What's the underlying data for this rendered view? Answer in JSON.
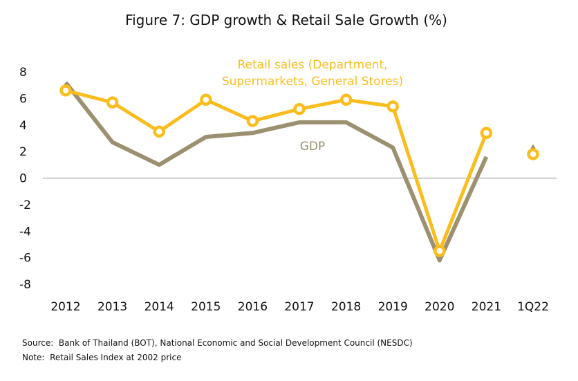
{
  "chart_data": {
    "type": "line",
    "title": "Figure 7: GDP growth & Retail Sale Growth (%)",
    "xlabel": "",
    "ylabel": "",
    "categories": [
      "2012",
      "2013",
      "2014",
      "2015",
      "2016",
      "2017",
      "2018",
      "2019",
      "2020",
      "2021",
      "1Q22"
    ],
    "ylim": [
      -8,
      8
    ],
    "yticks": [
      8,
      6,
      4,
      2,
      0,
      -2,
      -4,
      -6,
      -8
    ],
    "grid": false,
    "zero_line": true,
    "legend": "inline-labels",
    "series": [
      {
        "name": "GDP",
        "color": "#9c9070",
        "markers": false,
        "values": [
          7.2,
          2.7,
          1.0,
          3.1,
          3.4,
          4.2,
          4.2,
          2.3,
          -6.2,
          1.6,
          2.3
        ]
      },
      {
        "name": "Retail sales (Department, Supermarkets, General Stores)",
        "label_lines": [
          "Retail sales (Department,",
          "Supermarkets, General Stores)"
        ],
        "color": "#fbbd1e",
        "markers": true,
        "values": [
          6.6,
          5.7,
          3.5,
          5.9,
          4.3,
          5.2,
          5.9,
          5.4,
          -5.5,
          3.4,
          1.8
        ]
      }
    ]
  },
  "source": "Source:  Bank of Thailand (BOT), National Economic and Social Development Council (NESDC)",
  "note": "Note:  Retail Sales Index at 2002 price"
}
